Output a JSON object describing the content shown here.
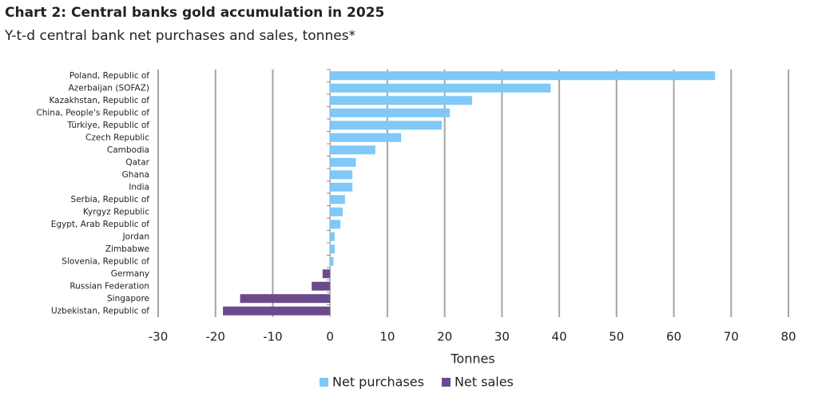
{
  "chart_data": {
    "type": "hbar",
    "title": "Chart 2: Central banks gold accumulation in 2025",
    "subtitle": "Y-t-d central bank net purchases and sales, tonnes*",
    "x_label": "Tonnes",
    "categories": [
      "Poland, Republic of",
      "Azerbaijan (SOFAZ)",
      "Kazakhstan, Republic of",
      "China, People's Republic of",
      "Türkiye, Republic of",
      "Czech Republic",
      "Cambodia",
      "Qatar",
      "Ghana",
      "India",
      "Serbia, Republic of",
      "Kyrgyz Republic",
      "Egypt, Arab Republic of",
      "Jordan",
      "Zimbabwe",
      "Slovenia, Republic of",
      "Germany",
      "Russian Federation",
      "Singapore",
      "Uzbekistan, Republic of"
    ],
    "series": [
      {
        "name": "Net purchases",
        "color": "#7fc8f8",
        "values": [
          67.2,
          38.5,
          24.8,
          20.9,
          19.5,
          12.4,
          7.9,
          4.5,
          3.9,
          3.9,
          2.6,
          2.2,
          1.8,
          0.8,
          0.8,
          0.6,
          null,
          null,
          null,
          null
        ]
      },
      {
        "name": "Net sales",
        "color": "#6b4a8c",
        "values": [
          null,
          null,
          null,
          null,
          null,
          null,
          null,
          null,
          null,
          null,
          null,
          null,
          null,
          null,
          null,
          null,
          -1.3,
          -3.2,
          -15.7,
          -18.7
        ]
      }
    ],
    "xlim": [
      -30,
      80
    ],
    "xticks": [
      -30,
      -20,
      -10,
      0,
      10,
      20,
      30,
      40,
      50,
      60,
      70,
      80
    ],
    "grid": true,
    "legend": "bottom"
  }
}
